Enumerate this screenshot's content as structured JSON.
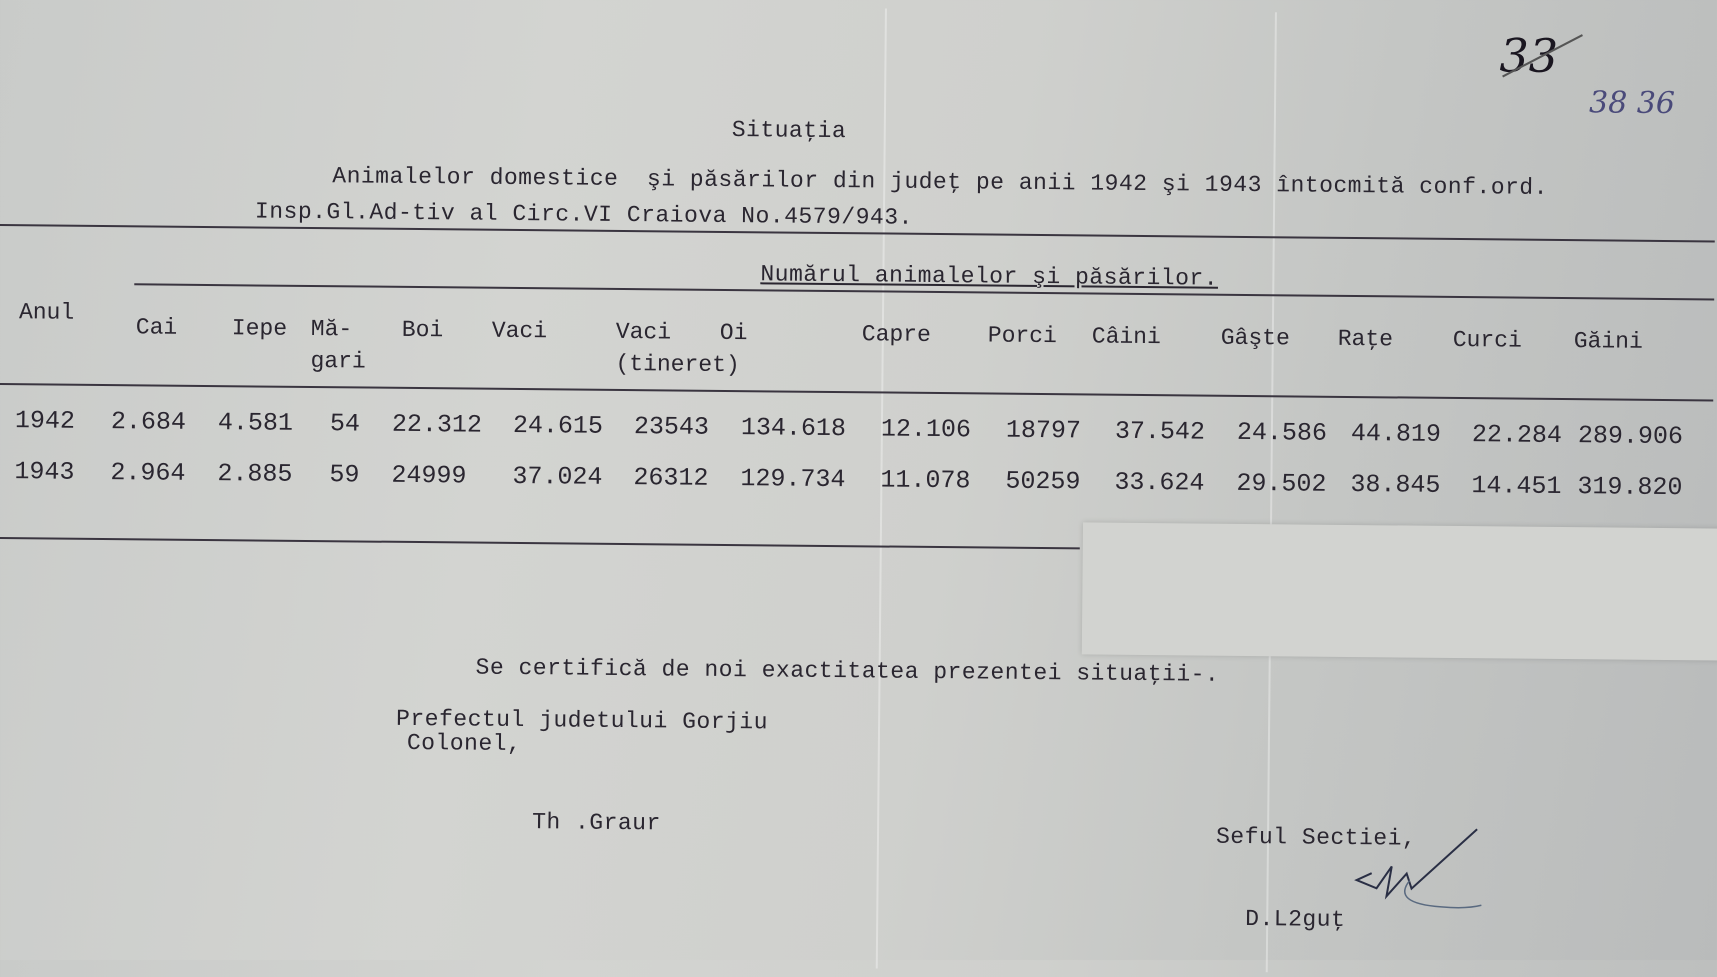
{
  "annotations": {
    "page_number": "33",
    "page_number_alt": "38 36"
  },
  "title": "Situaţia",
  "subtitle_line1": "Animalelor domestice  şi păsărilor din judeţ pe anii 1942 şi 1943 întocmită conf.ord.",
  "subtitle_line2": "Insp.Gl.Ad-tiv al Circ.VI Craiova No.4579/943.",
  "table": {
    "group_header": "Numărul animalelor şi păsărilor.",
    "columns": [
      "Anul",
      "Cai",
      "Iepe",
      "Mă-\ngari",
      "Boi",
      "Vaci",
      "Vaci\n(tineret)",
      "Oi",
      "Capre",
      "Porci",
      "Câini",
      "Gâşte",
      "Raţe",
      "Curci",
      "Găini"
    ],
    "rows": [
      [
        "1942",
        "2.684",
        "4.581",
        "54",
        "22.312",
        "24.615",
        "23543",
        "134.618",
        "12.106",
        "18797",
        "37.542",
        "24.586",
        "44.819",
        "22.284",
        "289.906"
      ],
      [
        "1943",
        "2.964",
        "2.885",
        "59",
        "24999",
        "37.024",
        "26312",
        "129.734",
        "11.078",
        "50259",
        "33.624",
        "29.502",
        "38.845",
        "14.451",
        "319.820"
      ]
    ]
  },
  "certification": "Se certifică de noi exactitatea prezentei situaţii-.",
  "signatory_left": {
    "title": "Prefectul judetului Gorjiu",
    "rank": "Colonel,",
    "name": "Th .Graur"
  },
  "signatory_right": {
    "title": "Seful Sectiei,",
    "name": "D.L2guţ"
  }
}
